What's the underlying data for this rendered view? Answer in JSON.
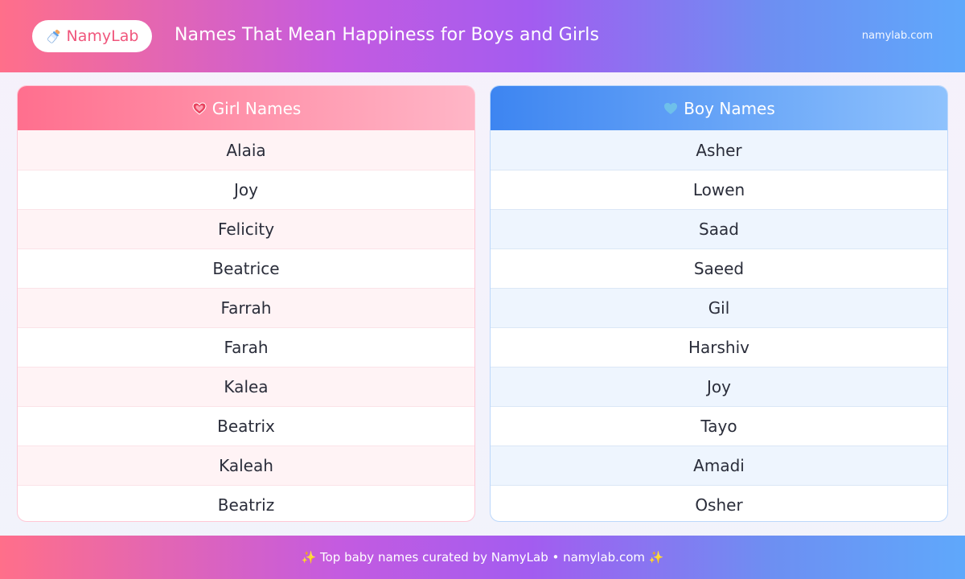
{
  "header": {
    "brand": "NamyLab",
    "title": "Names That Mean Happiness for Boys and Girls",
    "site_url": "namylab.com"
  },
  "girl_card": {
    "title": "Girl Names",
    "names": [
      "Alaia",
      "Joy",
      "Felicity",
      "Beatrice",
      "Farrah",
      "Farah",
      "Kalea",
      "Beatrix",
      "Kaleah",
      "Beatriz"
    ]
  },
  "boy_card": {
    "title": "Boy Names",
    "names": [
      "Asher",
      "Lowen",
      "Saad",
      "Saeed",
      "Gil",
      "Harshiv",
      "Joy",
      "Tayo",
      "Amadi",
      "Osher"
    ]
  },
  "footer": {
    "text": "✨ Top baby names curated by NamyLab • namylab.com ✨"
  },
  "colors": {
    "girl_accent": "#ff6f8e",
    "boy_accent": "#3d85f1",
    "brand": "#f0567c"
  },
  "icons": {
    "brand": "baby-bottle-icon",
    "girl": "pink-heart-icon",
    "boy": "blue-heart-icon"
  }
}
